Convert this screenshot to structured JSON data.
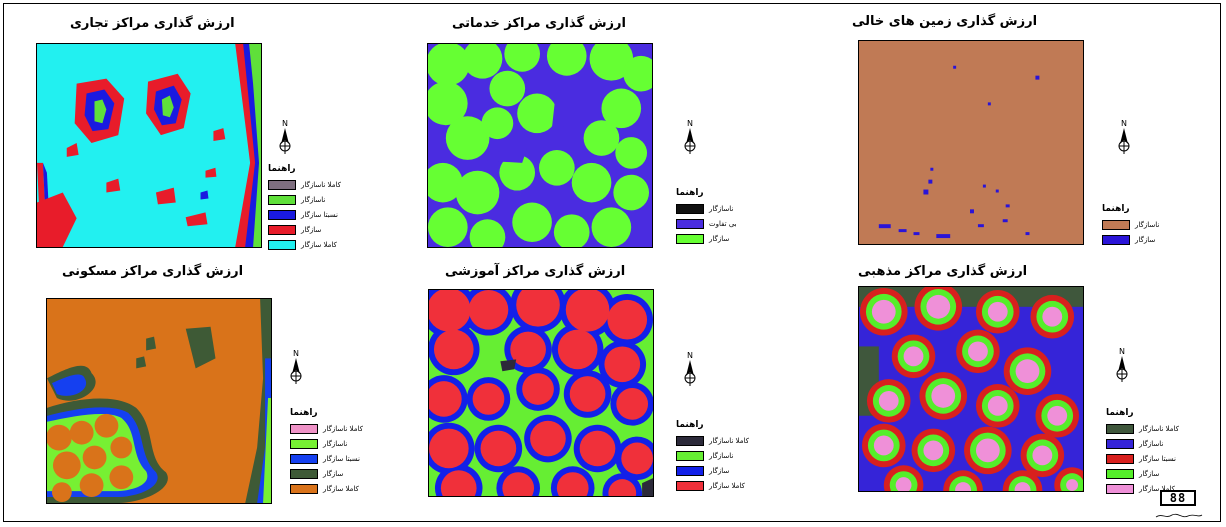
{
  "maps": [
    {
      "id": "commercial",
      "title": "ارزش گذاری مراکز تجاری",
      "legend_title": "راهنما",
      "legend": [
        {
          "label": "کاملا ناسازگار",
          "color": "#7f6f80"
        },
        {
          "label": "ناسازگار",
          "color": "#5fe03a"
        },
        {
          "label": "نسبتا سازگار",
          "color": "#1a1ae0"
        },
        {
          "label": "سازگار",
          "color": "#e81c2a"
        },
        {
          "label": "کاملا سازگار",
          "color": "#22f0f0"
        }
      ]
    },
    {
      "id": "services",
      "title": "ارزش گذاری مراکز خدماتی",
      "legend_title": "راهنما",
      "legend": [
        {
          "label": "ناسازگار",
          "color": "#111111"
        },
        {
          "label": "بی تفاوت",
          "color": "#4a2ce0"
        },
        {
          "label": "سازگار",
          "color": "#66ff33"
        }
      ]
    },
    {
      "id": "vacant",
      "title": "ارزش گذاری زمین های خالی",
      "legend_title": "راهنما",
      "legend": [
        {
          "label": "ناسازگار",
          "color": "#c07a55"
        },
        {
          "label": "سازگار",
          "color": "#2a14d8"
        }
      ]
    },
    {
      "id": "residential",
      "title": "ارزش گذاری مراکز مسکونی",
      "legend_title": "راهنما",
      "legend": [
        {
          "label": "کاملا ناسازگار",
          "color": "#ef92c7"
        },
        {
          "label": "ناسازگار",
          "color": "#77f033"
        },
        {
          "label": "نسبتا سازگار",
          "color": "#1540f0"
        },
        {
          "label": "سازگار",
          "color": "#3e5a36"
        },
        {
          "label": "کاملا سازگار",
          "color": "#d9731a"
        }
      ]
    },
    {
      "id": "educational",
      "title": "ارزش گذاری مراکز آموزشی",
      "legend_title": "راهنما",
      "legend": [
        {
          "label": "کاملا ناسازگار",
          "color": "#2c2a3a"
        },
        {
          "label": "ناسازگار",
          "color": "#66ee33"
        },
        {
          "label": "سازگار",
          "color": "#1220e8"
        },
        {
          "label": "کاملا سازگار",
          "color": "#f0303a"
        }
      ]
    },
    {
      "id": "religious",
      "title": "ارزش گذاری مراکز مذهبی",
      "legend_title": "راهنما",
      "legend": [
        {
          "label": "کاملا ناسازگار",
          "color": "#3f573c"
        },
        {
          "label": "ناسازگار",
          "color": "#3524d8"
        },
        {
          "label": "نسبتا سازگار",
          "color": "#d8201e"
        },
        {
          "label": "سازگار",
          "color": "#55ee2a"
        },
        {
          "label": "کاملا سازگار",
          "color": "#ef90d8"
        }
      ]
    }
  ],
  "north_label": "N",
  "logo_text": "88"
}
